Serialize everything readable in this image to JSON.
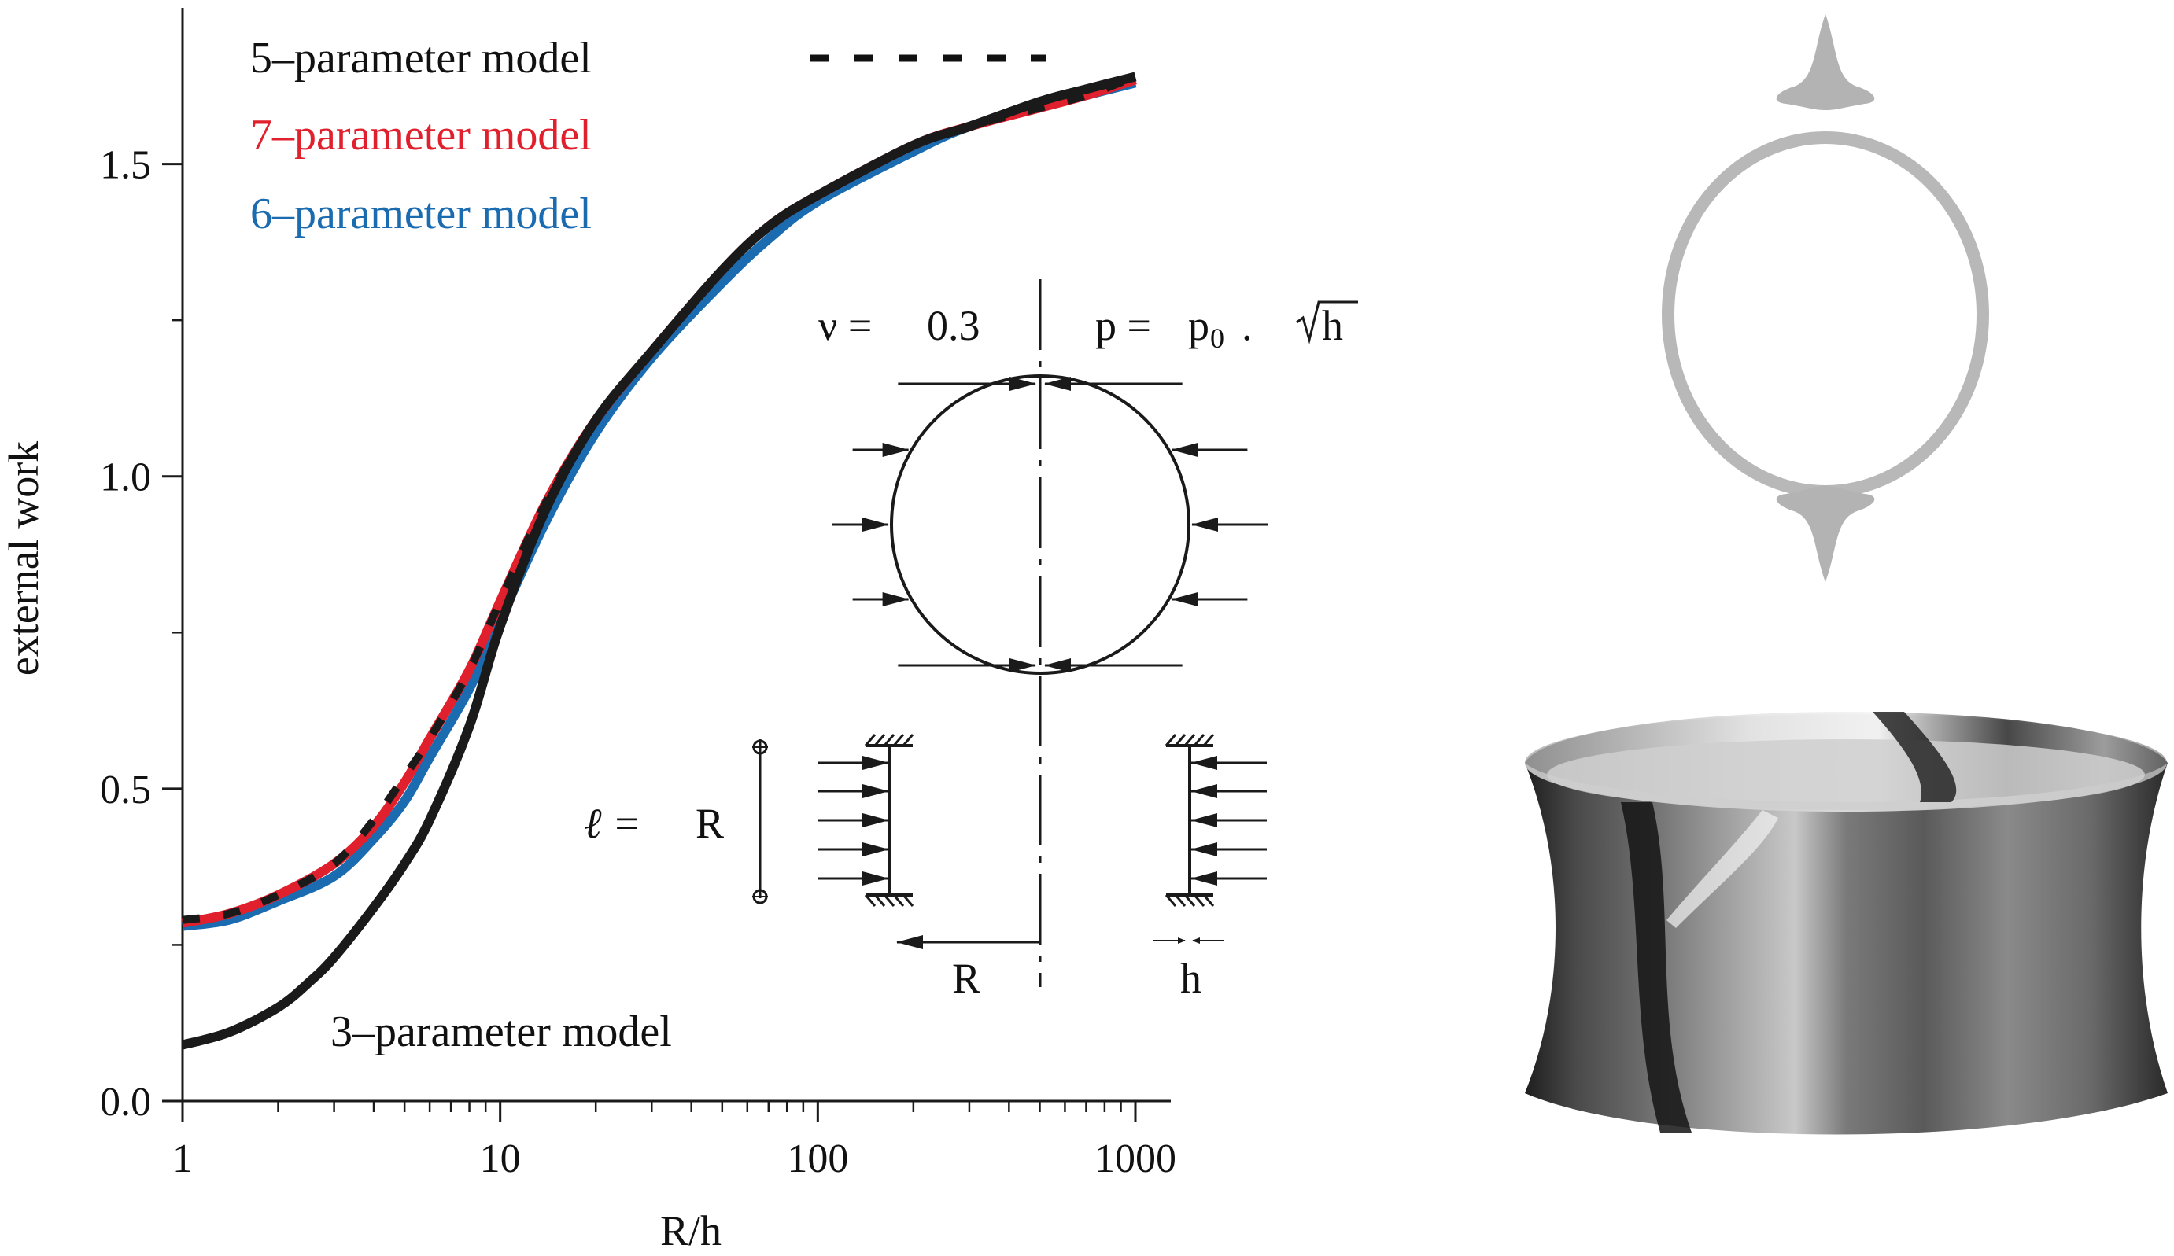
{
  "chart_data": {
    "type": "line",
    "xscale": "log",
    "xlim": [
      1,
      1000
    ],
    "ylim": [
      0,
      1.75
    ],
    "xlabel": "R/h",
    "ylabel": "external work",
    "xticks": [
      1,
      10,
      100,
      1000
    ],
    "xtick_labels": [
      "1",
      "10",
      "100",
      "1000"
    ],
    "yticks": [
      0.0,
      0.5,
      1.0,
      1.5
    ],
    "ytick_labels": [
      "0.0",
      "0.5",
      "1.0",
      "1.5"
    ],
    "grid": false,
    "legend_placement": "top-left",
    "series": [
      {
        "name": "5–parameter model",
        "color": "#1a1a1a",
        "style": "dashed",
        "x": [
          1,
          1.4,
          2,
          3,
          4,
          5,
          6,
          8,
          10,
          14,
          20,
          30,
          50,
          70,
          100,
          200,
          300,
          500,
          700,
          1000
        ],
        "y": [
          0.29,
          0.3,
          0.33,
          0.38,
          0.45,
          0.52,
          0.58,
          0.69,
          0.8,
          0.96,
          1.09,
          1.2,
          1.33,
          1.4,
          1.45,
          1.53,
          1.56,
          1.59,
          1.61,
          1.64
        ]
      },
      {
        "name": "7–parameter model",
        "color": "#e0202c",
        "style": "solid",
        "x": [
          1,
          1.4,
          2,
          3,
          4,
          5,
          6,
          8,
          10,
          14,
          20,
          30,
          50,
          70,
          100,
          200,
          300,
          500,
          700,
          1000
        ],
        "y": [
          0.285,
          0.3,
          0.33,
          0.38,
          0.44,
          0.51,
          0.58,
          0.69,
          0.8,
          0.96,
          1.09,
          1.2,
          1.33,
          1.4,
          1.45,
          1.53,
          1.56,
          1.59,
          1.61,
          1.635
        ]
      },
      {
        "name": "6–parameter model",
        "color": "#1a6bb0",
        "style": "solid",
        "x": [
          1,
          1.4,
          2,
          3,
          4,
          5,
          6,
          8,
          10,
          14,
          20,
          30,
          50,
          70,
          100,
          200,
          300,
          500,
          700,
          1000
        ],
        "y": [
          0.28,
          0.29,
          0.32,
          0.36,
          0.42,
          0.48,
          0.55,
          0.66,
          0.77,
          0.93,
          1.07,
          1.19,
          1.31,
          1.38,
          1.44,
          1.52,
          1.56,
          1.59,
          1.61,
          1.63
        ]
      },
      {
        "name": "3–parameter model",
        "color": "#1a1a1a",
        "style": "solid",
        "x": [
          1,
          1.4,
          2,
          2.5,
          3,
          4,
          5,
          6,
          8,
          10,
          14,
          20,
          30,
          50,
          70,
          100,
          200,
          300,
          500,
          700,
          1000
        ],
        "y": [
          0.09,
          0.11,
          0.15,
          0.19,
          0.23,
          0.31,
          0.38,
          0.45,
          0.6,
          0.76,
          0.95,
          1.09,
          1.2,
          1.33,
          1.4,
          1.45,
          1.53,
          1.56,
          1.6,
          1.62,
          1.64
        ]
      }
    ],
    "legend": [
      {
        "label": "5–parameter model",
        "color": "#1a1a1a",
        "swatch": "dashed"
      },
      {
        "label": "7–parameter model",
        "color": "#e0202c",
        "swatch": "none"
      },
      {
        "label": "6–parameter model",
        "color": "#1a6bb0",
        "swatch": "none"
      }
    ],
    "annotations": {
      "curve_label": "3–parameter model",
      "nu_label": "ν =",
      "nu_value": "0.3",
      "p_label": "p =",
      "p0_label": "p",
      "p0_sub": "0",
      "p_dot": ".",
      "sqrt_h": "h",
      "ell_label": "ℓ =",
      "ell_value": "R",
      "R_label": "R",
      "h_label": "h"
    }
  },
  "colors": {
    "ink": "#1a1a1a",
    "red": "#e0202c",
    "blue": "#1a6bb0",
    "ring_gray": "#b5b5b5"
  }
}
